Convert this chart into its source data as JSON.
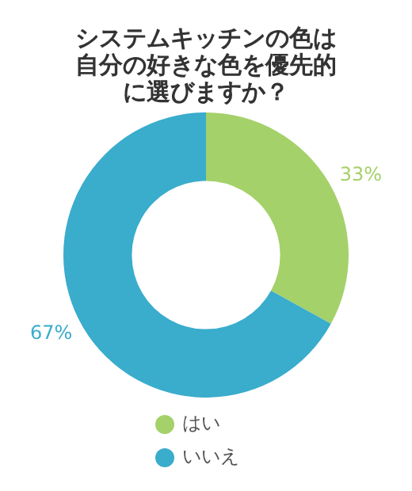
{
  "chart_data": {
    "type": "donut",
    "title": "システムキッチンの色は自分の好きな色を優先的に選びますか？",
    "categories": [
      "はい",
      "いいえ"
    ],
    "values": [
      33,
      67
    ],
    "colors": [
      "#a5d16a",
      "#3aaccc"
    ],
    "value_labels": [
      "33%",
      "67%"
    ],
    "legend": "bottom"
  }
}
